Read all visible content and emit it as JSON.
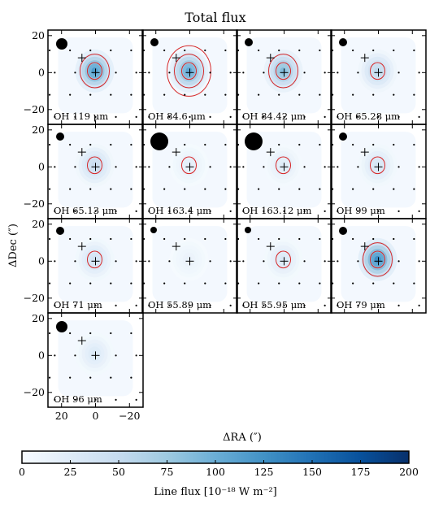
{
  "chart_data": {
    "type": "heatmap",
    "title": "Total flux",
    "xlabel": "ΔRA (″)",
    "ylabel": "ΔDec (″)",
    "xlim": [
      28,
      -28
    ],
    "ylim": [
      -28,
      23
    ],
    "xticks": [
      20,
      0,
      -20
    ],
    "yticks": [
      20,
      0,
      -20
    ],
    "colorbar": {
      "label": "Line flux [10⁻¹⁸ W m⁻²]",
      "range": [
        0,
        200
      ],
      "ticks": [
        0,
        25,
        50,
        75,
        100,
        125,
        150,
        175,
        200
      ],
      "colors": [
        "#f7fbff",
        "#deebf7",
        "#c6dbef",
        "#9ecae1",
        "#6baed6",
        "#4292c6",
        "#2171b5",
        "#08519c",
        "#08306b"
      ]
    },
    "contour_color": "#d62728",
    "panels": [
      {
        "label": "OH 119 μm",
        "peak_flux": 120,
        "contour_rings": 2,
        "beam": "medium"
      },
      {
        "label": "OH 84.6 μm",
        "peak_flux": 110,
        "contour_rings": 3,
        "beam": "small"
      },
      {
        "label": "OH 84.42 μm",
        "peak_flux": 90,
        "contour_rings": 2,
        "beam": "small"
      },
      {
        "label": "OH 65.28 μm",
        "peak_flux": 55,
        "contour_rings": 1,
        "beam": "small"
      },
      {
        "label": "OH 65.13 μm",
        "peak_flux": 50,
        "contour_rings": 1,
        "beam": "small"
      },
      {
        "label": "OH 163.4 μm",
        "peak_flux": 20,
        "contour_rings": 1,
        "beam": "large"
      },
      {
        "label": "OH 163.12 μm",
        "peak_flux": 25,
        "contour_rings": 1,
        "beam": "large"
      },
      {
        "label": "OH 99 μm",
        "peak_flux": 35,
        "contour_rings": 1,
        "beam": "small"
      },
      {
        "label": "OH 71 μm",
        "peak_flux": 40,
        "contour_rings": 1,
        "beam": "small"
      },
      {
        "label": "OH 55.89 μm",
        "peak_flux": 15,
        "contour_rings": 0,
        "beam": "tiny"
      },
      {
        "label": "OH 55.95 μm",
        "peak_flux": 30,
        "contour_rings": 1,
        "beam": "tiny"
      },
      {
        "label": "OH 79 μm",
        "peak_flux": 130,
        "contour_rings": 2,
        "beam": "small"
      },
      {
        "label": "OH 96 μm",
        "peak_flux": 30,
        "contour_rings": 0,
        "beam": "medium"
      }
    ]
  }
}
